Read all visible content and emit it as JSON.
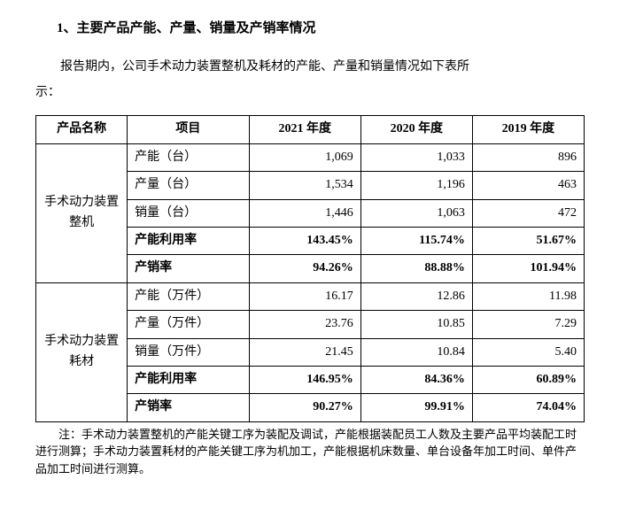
{
  "heading": "1、主要产品产能、产量、销量及产销率情况",
  "intro_line1": "报告期内，公司手术动力装置整机及耗材的产能、产量和销量情况如下表所",
  "intro_line2": "示：",
  "columns": {
    "c0": "产品名称",
    "c1": "项目",
    "c2": "2021 年度",
    "c3": "2020 年度",
    "c4": "2019 年度"
  },
  "group1": {
    "name": "手术动力装置整机",
    "r0": {
      "label": "产能（台）",
      "y21": "1,069",
      "y20": "1,033",
      "y19": "896"
    },
    "r1": {
      "label": "产量（台）",
      "y21": "1,534",
      "y20": "1,196",
      "y19": "463"
    },
    "r2": {
      "label": "销量（台）",
      "y21": "1,446",
      "y20": "1,063",
      "y19": "472"
    },
    "r3": {
      "label": "产能利用率",
      "y21": "143.45%",
      "y20": "115.74%",
      "y19": "51.67%"
    },
    "r4": {
      "label": "产销率",
      "y21": "94.26%",
      "y20": "88.88%",
      "y19": "101.94%"
    }
  },
  "group2": {
    "name": "手术动力装置耗材",
    "r0": {
      "label": "产能（万件）",
      "y21": "16.17",
      "y20": "12.86",
      "y19": "11.98"
    },
    "r1": {
      "label": "产量（万件）",
      "y21": "23.76",
      "y20": "10.85",
      "y19": "7.29"
    },
    "r2": {
      "label": "销量（万件）",
      "y21": "21.45",
      "y20": "10.84",
      "y19": "5.40"
    },
    "r3": {
      "label": "产能利用率",
      "y21": "146.95%",
      "y20": "84.36%",
      "y19": "60.89%"
    },
    "r4": {
      "label": "产销率",
      "y21": "90.27%",
      "y20": "99.91%",
      "y19": "74.04%"
    }
  },
  "note": "注：手术动力装置整机的产能关键工序为装配及调试，产能根据装配员工人数及主要产品平均装配工时进行测算；手术动力装置耗材的产能关键工序为机加工，产能根据机床数量、单台设备年加工时间、单件产品加工时间进行测算。"
}
